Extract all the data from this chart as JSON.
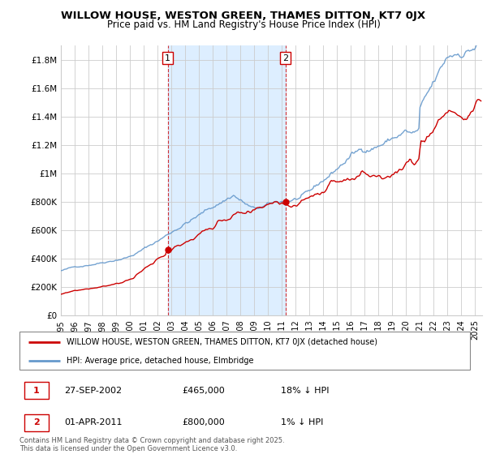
{
  "title_line1": "WILLOW HOUSE, WESTON GREEN, THAMES DITTON, KT7 0JX",
  "title_line2": "Price paid vs. HM Land Registry's House Price Index (HPI)",
  "ylim": [
    0,
    1900000
  ],
  "yticks": [
    0,
    200000,
    400000,
    600000,
    800000,
    1000000,
    1200000,
    1400000,
    1600000,
    1800000
  ],
  "ytick_labels": [
    "£0",
    "£200K",
    "£400K",
    "£600K",
    "£800K",
    "£1M",
    "£1.2M",
    "£1.4M",
    "£1.6M",
    "£1.8M"
  ],
  "sale1_date": "27-SEP-2002",
  "sale1_price": 465000,
  "sale1_hpi_diff": "18% ↓ HPI",
  "sale1_x": 2002.74,
  "sale2_date": "01-APR-2011",
  "sale2_price": 800000,
  "sale2_hpi_diff": "1% ↓ HPI",
  "sale2_x": 2011.25,
  "legend_line1": "WILLOW HOUSE, WESTON GREEN, THAMES DITTON, KT7 0JX (detached house)",
  "legend_line2": "HPI: Average price, detached house, Elmbridge",
  "house_color": "#cc0000",
  "hpi_color": "#6699cc",
  "bg_shade_color": "#ddeeff",
  "grid_color": "#cccccc",
  "footnote": "Contains HM Land Registry data © Crown copyright and database right 2025.\nThis data is licensed under the Open Government Licence v3.0.",
  "xmin": 1995,
  "xmax": 2025.5
}
